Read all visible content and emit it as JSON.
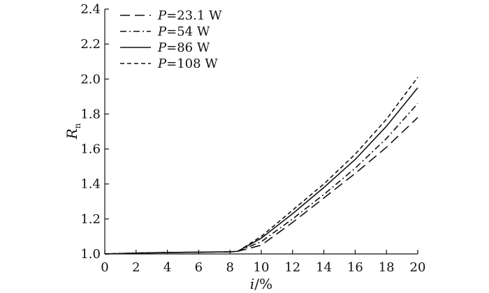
{
  "chart_data": {
    "type": "line",
    "title": "",
    "xlabel": "i/%",
    "xlabel_italic": "i",
    "xlabel_unit": "/%",
    "ylabel": "R_n",
    "ylabel_main": "R",
    "ylabel_sub": "n",
    "xlim": [
      0,
      20
    ],
    "ylim": [
      1.0,
      2.4
    ],
    "xticks": [
      0,
      2,
      4,
      6,
      8,
      10,
      12,
      14,
      16,
      18,
      20
    ],
    "xtick_labels": [
      "0",
      "2",
      "4",
      "6",
      "8",
      "10",
      "12",
      "14",
      "16",
      "18",
      "20"
    ],
    "yticks": [
      1.0,
      1.2,
      1.4,
      1.6,
      1.8,
      2.0,
      2.2,
      2.4
    ],
    "ytick_labels": [
      "1.0",
      "1.2",
      "1.4",
      "1.6",
      "1.8",
      "2.0",
      "2.2",
      "2.4"
    ],
    "grid": false,
    "legend_position": "top-left",
    "x": [
      0,
      2,
      4,
      6,
      8,
      8.5,
      10,
      12,
      14,
      16,
      18,
      20
    ],
    "series": [
      {
        "name": "P=23.1 W",
        "legend_var": "P",
        "legend_rest": "=23.1 W",
        "dash": "long-dash",
        "color": "#111111",
        "values": [
          1.0,
          1.005,
          1.008,
          1.01,
          1.012,
          1.015,
          1.05,
          1.18,
          1.32,
          1.46,
          1.61,
          1.78
        ]
      },
      {
        "name": "P=54 W",
        "legend_var": "P",
        "legend_rest": "=54 W",
        "dash": "dash-dot",
        "color": "#111111",
        "values": [
          1.0,
          1.005,
          1.008,
          1.01,
          1.012,
          1.015,
          1.07,
          1.2,
          1.34,
          1.49,
          1.66,
          1.86
        ]
      },
      {
        "name": "P=86 W",
        "legend_var": "P",
        "legend_rest": "=86 W",
        "dash": "solid",
        "color": "#111111",
        "values": [
          1.0,
          1.005,
          1.008,
          1.01,
          1.012,
          1.015,
          1.09,
          1.23,
          1.38,
          1.54,
          1.73,
          1.95
        ]
      },
      {
        "name": "P=108 W",
        "legend_var": "P",
        "legend_rest": "=108 W",
        "dash": "short-dash",
        "color": "#111111",
        "values": [
          1.0,
          1.005,
          1.008,
          1.01,
          1.012,
          1.015,
          1.1,
          1.25,
          1.4,
          1.57,
          1.77,
          2.01
        ]
      }
    ]
  }
}
